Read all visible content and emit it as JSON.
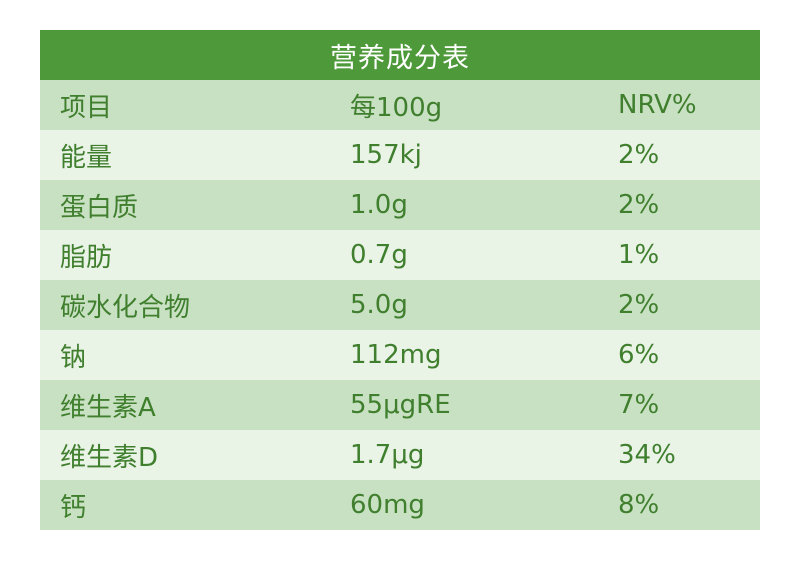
{
  "title": "营养成分表",
  "header": {
    "item": "项目",
    "amount": "每100g",
    "nrv": "NRV%"
  },
  "rows": [
    {
      "item": "能量",
      "amount": "157kj",
      "nrv": "2%"
    },
    {
      "item": "蛋白质",
      "amount": "1.0g",
      "nrv": "2%"
    },
    {
      "item": "脂肪",
      "amount": "0.7g",
      "nrv": "1%"
    },
    {
      "item": "碳水化合物",
      "amount": "5.0g",
      "nrv": "2%"
    },
    {
      "item": "钠",
      "amount": "112mg",
      "nrv": "6%"
    },
    {
      "item": "维生素A",
      "amount": "55μgRE",
      "nrv": "7%"
    },
    {
      "item": "维生素D",
      "amount": "1.7μg",
      "nrv": "34%"
    },
    {
      "item": "钙",
      "amount": "60mg",
      "nrv": "8%"
    }
  ],
  "colors": {
    "title_bg": "#4e9a3a",
    "row_dark": "#c9e1c3",
    "row_light": "#e9f3e6",
    "text": "#3f7f2e"
  }
}
